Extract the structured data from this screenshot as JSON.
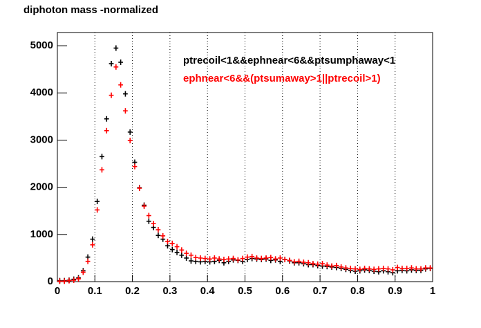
{
  "chart_data": {
    "type": "scatter",
    "title": "diphoton mass -normalized",
    "x": [
      0.00625,
      0.01875,
      0.03125,
      0.04375,
      0.05625,
      0.06875,
      0.08125,
      0.09375,
      0.10625,
      0.11875,
      0.13125,
      0.14375,
      0.15625,
      0.16875,
      0.18125,
      0.19375,
      0.20625,
      0.21875,
      0.23125,
      0.24375,
      0.25625,
      0.26875,
      0.28125,
      0.29375,
      0.30625,
      0.31875,
      0.33125,
      0.34375,
      0.35625,
      0.36875,
      0.38125,
      0.39375,
      0.40625,
      0.41875,
      0.43125,
      0.44375,
      0.45625,
      0.46875,
      0.48125,
      0.49375,
      0.50625,
      0.51875,
      0.53125,
      0.54375,
      0.55625,
      0.56875,
      0.58125,
      0.59375,
      0.60625,
      0.61875,
      0.63125,
      0.64375,
      0.65625,
      0.66875,
      0.68125,
      0.69375,
      0.70625,
      0.71875,
      0.73125,
      0.74375,
      0.75625,
      0.76875,
      0.78125,
      0.79375,
      0.80625,
      0.81875,
      0.83125,
      0.84375,
      0.85625,
      0.86875,
      0.88125,
      0.89375,
      0.90625,
      0.91875,
      0.93125,
      0.94375,
      0.95625,
      0.96875,
      0.98125,
      0.99375
    ],
    "series": [
      {
        "name": "ptrecoil<1&&ephnear<6&&ptsumphaway<1",
        "color": "#000000",
        "values": [
          20,
          20,
          30,
          50,
          80,
          230,
          520,
          900,
          1700,
          2650,
          3450,
          4620,
          4950,
          4650,
          3980,
          3170,
          2530,
          1990,
          1620,
          1280,
          1150,
          980,
          900,
          760,
          680,
          620,
          560,
          500,
          440,
          430,
          420,
          430,
          420,
          430,
          450,
          400,
          430,
          460,
          450,
          430,
          470,
          490,
          480,
          470,
          480,
          450,
          460,
          430,
          470,
          440,
          400,
          400,
          380,
          360,
          360,
          340,
          330,
          320,
          310,
          300,
          280,
          260,
          240,
          220,
          230,
          250,
          240,
          220,
          210,
          230,
          210,
          190,
          230,
          240,
          230,
          250,
          240,
          240,
          270,
          280
        ]
      },
      {
        "name": "ephnear<6&&(ptsumaway>1||ptrecoil>1)",
        "color": "#ff0000",
        "values": [
          10,
          10,
          20,
          30,
          60,
          200,
          430,
          780,
          1520,
          2370,
          3200,
          3950,
          4550,
          4170,
          3620,
          2990,
          2440,
          1980,
          1600,
          1400,
          1230,
          1100,
          970,
          850,
          810,
          740,
          670,
          600,
          560,
          510,
          500,
          490,
          480,
          500,
          480,
          470,
          480,
          490,
          460,
          490,
          520,
          530,
          500,
          490,
          500,
          510,
          480,
          500,
          470,
          450,
          420,
          430,
          410,
          400,
          380,
          370,
          380,
          350,
          330,
          340,
          310,
          290,
          280,
          270,
          260,
          280,
          270,
          260,
          270,
          280,
          270,
          250,
          300,
          280,
          280,
          290,
          270,
          270,
          290,
          290
        ]
      }
    ],
    "xlim": [
      0,
      1
    ],
    "ylim": [
      0,
      5280
    ],
    "xticks": [
      0,
      0.1,
      0.2,
      0.3,
      0.4,
      0.5,
      0.6,
      0.7,
      0.8,
      0.9,
      1
    ],
    "yticks": [
      0,
      1000,
      2000,
      3000,
      4000,
      5000
    ],
    "grid": true
  }
}
